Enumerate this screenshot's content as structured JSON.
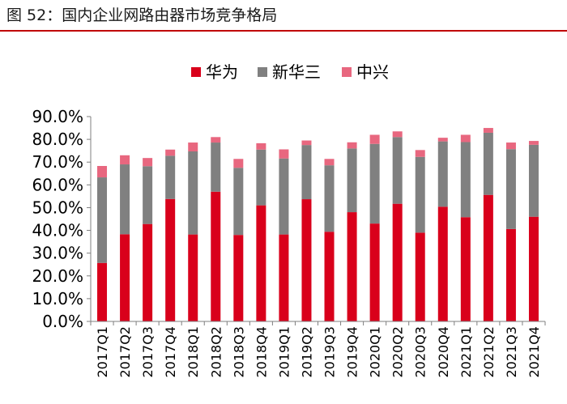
{
  "figure": {
    "title": "图 52：国内企业网路由器市场竞争格局"
  },
  "chart_data": {
    "type": "bar",
    "stacked": true,
    "title": "图 52：国内企业网路由器市场竞争格局",
    "xlabel": "",
    "ylabel": "",
    "ylim": [
      0,
      90
    ],
    "y_ticks": [
      "0.0%",
      "10.0%",
      "20.0%",
      "30.0%",
      "40.0%",
      "50.0%",
      "60.0%",
      "70.0%",
      "80.0%",
      "90.0%"
    ],
    "legend_position": "top-center",
    "categories": [
      "2017Q1",
      "2017Q2",
      "2017Q3",
      "2017Q4",
      "2018Q1",
      "2018Q2",
      "2018Q3",
      "2018Q4",
      "2019Q1",
      "2019Q2",
      "2019Q3",
      "2019Q4",
      "2020Q1",
      "2020Q2",
      "2020Q3",
      "2020Q4",
      "2021Q1",
      "2021Q2",
      "2021Q3",
      "2021Q4"
    ],
    "series": [
      {
        "name": "华为",
        "color": "#d9001b",
        "values": [
          25.7,
          38.3,
          42.8,
          53.8,
          38.2,
          57.0,
          38.0,
          51.0,
          38.2,
          53.7,
          39.4,
          48.0,
          43.0,
          51.7,
          39.0,
          50.4,
          45.8,
          55.6,
          40.6,
          46.0
        ]
      },
      {
        "name": "新华三",
        "color": "#808080",
        "values": [
          37.6,
          30.7,
          25.4,
          19.0,
          36.5,
          21.6,
          29.5,
          24.5,
          33.4,
          23.8,
          29.2,
          28.0,
          35.0,
          29.3,
          33.3,
          28.7,
          33.0,
          27.3,
          35.1,
          31.6
        ]
      },
      {
        "name": "中兴",
        "color": "#e8677f",
        "values": [
          5.0,
          4.0,
          3.6,
          2.7,
          3.9,
          2.4,
          3.9,
          2.8,
          4.0,
          2.0,
          2.8,
          2.7,
          4.0,
          2.5,
          3.0,
          1.6,
          3.2,
          2.1,
          2.9,
          1.7
        ]
      }
    ]
  }
}
